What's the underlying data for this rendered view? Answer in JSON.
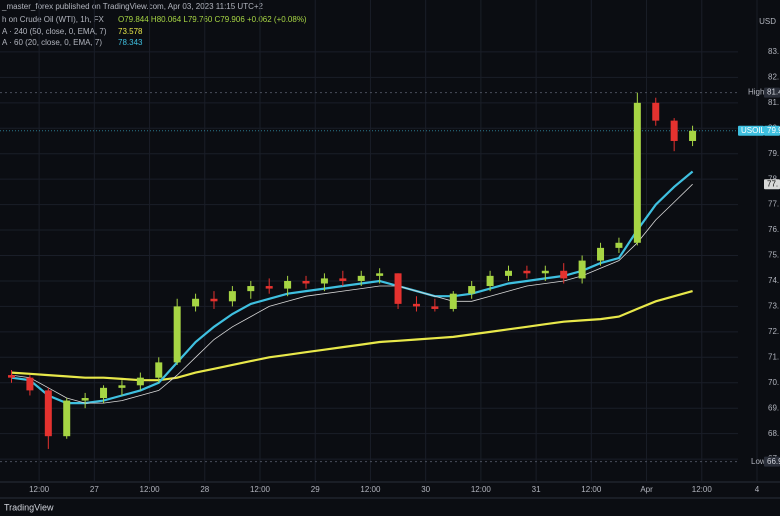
{
  "chart_data": {
    "type": "candlestick",
    "header": "_master_forex published on TradingView.com, Apr 03, 2023 11:15 UTC+2",
    "title": "h on Crude Oil (WTI), 1h, FX",
    "ohlc_label": "O79.844 H80.064 L79.760 C79.906 +0.062 (+0.08%)",
    "axis_unit": "USD",
    "watermark": "TradingView",
    "up_color": "#a7d544",
    "down_color": "#e5322f",
    "grid": true,
    "x": [
      6,
      10,
      14,
      18,
      22,
      26,
      30,
      34,
      38,
      42,
      46,
      50,
      54,
      58,
      62,
      66,
      70,
      74,
      78,
      82,
      86,
      90,
      94,
      98,
      102,
      106,
      110,
      114,
      118,
      122,
      126,
      130,
      134,
      138,
      142,
      146,
      150,
      154
    ],
    "open": [
      70.3,
      70.2,
      69.7,
      67.9,
      69.3,
      69.4,
      69.8,
      69.9,
      70.2,
      70.8,
      73.0,
      73.3,
      73.2,
      73.6,
      73.8,
      73.7,
      74.0,
      73.9,
      74.1,
      74.0,
      74.2,
      74.3,
      73.1,
      73.0,
      72.9,
      73.5,
      73.8,
      74.2,
      74.4,
      74.3,
      74.4,
      74.1,
      74.8,
      75.3,
      75.5,
      81.0,
      80.3,
      79.5
    ],
    "high": [
      70.5,
      70.3,
      69.8,
      69.4,
      69.6,
      69.9,
      70.1,
      70.4,
      71.0,
      73.3,
      73.5,
      73.6,
      73.8,
      74.0,
      74.1,
      74.2,
      74.2,
      74.3,
      74.4,
      74.4,
      74.5,
      74.3,
      73.4,
      73.3,
      73.6,
      74.0,
      74.4,
      74.6,
      74.6,
      74.6,
      74.7,
      75.0,
      75.5,
      75.7,
      81.4,
      81.2,
      80.4,
      80.1
    ],
    "low": [
      70.0,
      69.5,
      67.4,
      67.8,
      69.0,
      69.2,
      69.5,
      69.7,
      70.0,
      70.7,
      72.8,
      72.9,
      73.0,
      73.3,
      73.5,
      73.4,
      73.7,
      73.6,
      73.8,
      73.8,
      73.9,
      72.9,
      72.8,
      72.8,
      72.8,
      73.3,
      73.6,
      74.0,
      74.1,
      74.0,
      73.9,
      73.9,
      74.6,
      75.1,
      75.4,
      80.1,
      79.1,
      79.3
    ],
    "close": [
      70.2,
      69.7,
      67.9,
      69.3,
      69.4,
      69.8,
      69.9,
      70.2,
      70.8,
      73.0,
      73.3,
      73.2,
      73.6,
      73.8,
      73.7,
      74.0,
      73.9,
      74.1,
      74.0,
      74.2,
      74.3,
      73.1,
      73.0,
      72.9,
      73.5,
      73.8,
      74.2,
      74.4,
      74.3,
      74.4,
      74.1,
      74.8,
      75.3,
      75.5,
      81.0,
      80.3,
      79.5,
      79.9
    ],
    "lines": [
      {
        "name": "A · 240 (50, close, 0, EMA, 7)",
        "value_label": "73.578",
        "color": "#e8e84a",
        "width": 2.2,
        "values": [
          70.4,
          70.35,
          70.3,
          70.25,
          70.2,
          70.2,
          70.15,
          70.1,
          70.1,
          70.2,
          70.4,
          70.55,
          70.7,
          70.85,
          71.0,
          71.1,
          71.2,
          71.3,
          71.4,
          71.5,
          71.6,
          71.65,
          71.7,
          71.75,
          71.8,
          71.9,
          72.0,
          72.1,
          72.2,
          72.3,
          72.4,
          72.45,
          72.5,
          72.6,
          72.9,
          73.2,
          73.4,
          73.6
        ]
      },
      {
        "name": "A · 60 (20, close, 0, EMA, 7)",
        "value_label": "78.343",
        "color": "#3fc0e0",
        "width": 2.2,
        "values": [
          70.2,
          70.1,
          69.5,
          69.2,
          69.2,
          69.3,
          69.5,
          69.7,
          70.0,
          70.8,
          71.6,
          72.2,
          72.7,
          73.1,
          73.3,
          73.5,
          73.6,
          73.7,
          73.8,
          73.9,
          74.0,
          73.8,
          73.6,
          73.4,
          73.4,
          73.5,
          73.7,
          73.9,
          74.0,
          74.1,
          74.2,
          74.4,
          74.7,
          74.9,
          76.0,
          77.0,
          77.7,
          78.3
        ]
      },
      {
        "value_label": "77.",
        "color": "#d8d8d8",
        "width": 0.8,
        "values": [
          70.3,
          70.2,
          69.8,
          69.4,
          69.2,
          69.2,
          69.3,
          69.5,
          69.7,
          70.3,
          71.0,
          71.7,
          72.2,
          72.6,
          73.0,
          73.2,
          73.4,
          73.5,
          73.6,
          73.7,
          73.8,
          73.8,
          73.6,
          73.4,
          73.2,
          73.2,
          73.4,
          73.6,
          73.8,
          73.9,
          74.0,
          74.2,
          74.5,
          74.8,
          75.5,
          76.4,
          77.1,
          77.8
        ]
      }
    ],
    "high_marker": {
      "label": "High",
      "value": 81.4,
      "value_label": "81.4"
    },
    "low_marker": {
      "label": "Low",
      "value": 66.9,
      "value_label": "66.9"
    },
    "price_tag": {
      "label": "USOIL",
      "value": 79.9,
      "value_label": "79.9",
      "color": "#3fc0e0"
    },
    "xlim": [
      3.5,
      173
    ],
    "xticks": [
      {
        "value": 12,
        "label": "12:00"
      },
      27,
      {
        "value": 36,
        "label": "12:00"
      },
      28,
      {
        "value": 60,
        "label": "12:00"
      },
      29,
      {
        "value": 84,
        "label": "12:00"
      },
      30,
      {
        "value": 108,
        "label": "12:00"
      },
      31,
      {
        "value": 132,
        "label": "12:00"
      },
      {
        "value": 144,
        "label": "Apr"
      },
      {
        "value": 156,
        "label": "12:00"
      },
      4
    ],
    "xtick_positions": [
      12,
      24,
      36,
      48,
      60,
      72,
      84,
      96,
      108,
      120,
      132,
      144,
      156,
      168
    ],
    "ylim": [
      66.1,
      85.04
    ],
    "yticks": [
      {
        "value": 83,
        "label": "83."
      },
      {
        "value": 82,
        "label": "82."
      },
      {
        "value": 81,
        "label": "81."
      },
      {
        "value": 80,
        "label": "80."
      },
      {
        "value": 79,
        "label": "79."
      },
      {
        "value": 78,
        "label": "78."
      },
      {
        "value": 77,
        "label": "77."
      },
      {
        "value": 76,
        "label": "76."
      },
      {
        "value": 75,
        "label": "75."
      },
      {
        "value": 74,
        "label": "74."
      },
      {
        "value": 73,
        "label": "73."
      },
      {
        "value": 72,
        "label": "72."
      },
      {
        "value": 71,
        "label": "71."
      },
      {
        "value": 70,
        "label": "70."
      },
      {
        "value": 69,
        "label": "69."
      },
      {
        "value": 68,
        "label": "68."
      },
      {
        "value": 67,
        "label": "67."
      }
    ]
  }
}
